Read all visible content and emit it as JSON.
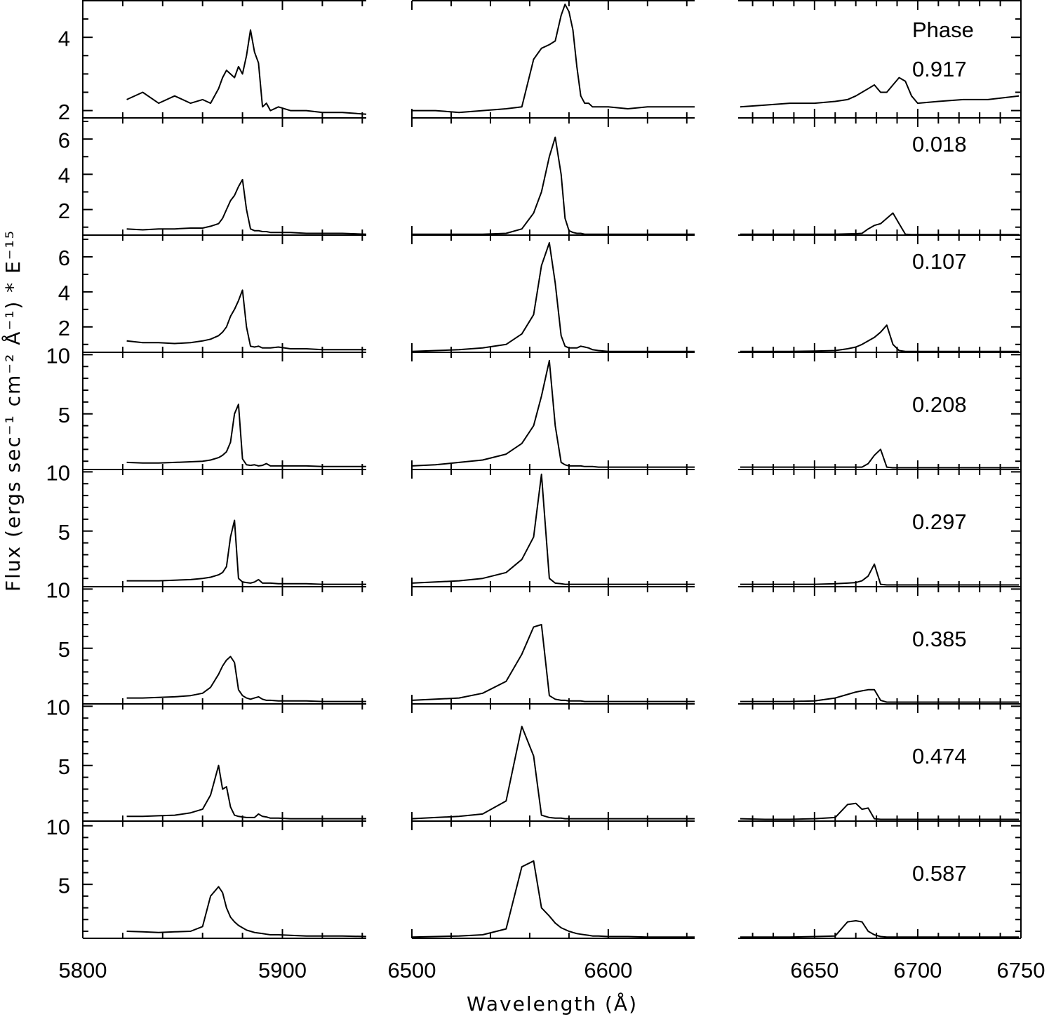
{
  "chart_data": {
    "type": "line",
    "color": "#000000",
    "ylabel": "Flux (ergs sec⁻¹ cm⁻² Å⁻¹) * E⁻¹⁵",
    "xlabel": "Wavelength (Å)",
    "legend_title": "Phase",
    "columns": [
      {
        "xlim": [
          5800,
          5942
        ],
        "xticks": [
          5800,
          5900
        ],
        "xminorticks": [
          5820,
          5840,
          5860,
          5880,
          5920,
          5940
        ],
        "x": [
          5822,
          5830,
          5838,
          5846,
          5854,
          5860,
          5864,
          5868,
          5870,
          5872,
          5874,
          5876,
          5878,
          5880,
          5882,
          5884,
          5886,
          5888,
          5890,
          5892,
          5894,
          5898,
          5904,
          5912,
          5920,
          5930,
          5942
        ]
      },
      {
        "xlim": [
          6500,
          6644
        ],
        "xticks": [
          6500,
          6600
        ],
        "xminorticks": [
          6520,
          6540,
          6560,
          6580,
          6620,
          6640
        ],
        "x": [
          6500,
          6512,
          6524,
          6536,
          6548,
          6556,
          6562,
          6566,
          6570,
          6573,
          6576,
          6578,
          6580,
          6582,
          6584,
          6586,
          6588,
          6590,
          6592,
          6595,
          6600,
          6610,
          6620,
          6632,
          6644
        ]
      },
      {
        "xlim": [
          6613,
          6750
        ],
        "xticks": [
          6650,
          6700,
          6750
        ],
        "xminorticks": [
          6620,
          6630,
          6640,
          6660,
          6670,
          6680,
          6690,
          6710,
          6720,
          6730,
          6740
        ],
        "x": [
          6614,
          6626,
          6638,
          6650,
          6660,
          6666,
          6670,
          6673,
          6676,
          6679,
          6682,
          6685,
          6688,
          6691,
          6694,
          6697,
          6700,
          6710,
          6722,
          6734,
          6749
        ]
      }
    ],
    "rows": [
      {
        "phase": "0.917",
        "ylim": [
          1.8,
          5.0
        ],
        "yticks": [
          2,
          4
        ],
        "yminorticks": [
          2.5,
          3,
          3.5,
          4.5
        ],
        "series": [
          [
            2.3,
            2.5,
            2.2,
            2.4,
            2.2,
            2.3,
            2.2,
            2.6,
            2.9,
            3.1,
            3.0,
            2.9,
            3.2,
            3.0,
            3.5,
            4.2,
            3.6,
            3.3,
            2.1,
            2.2,
            2.0,
            2.1,
            2.0,
            2.0,
            1.95,
            1.95,
            1.9
          ],
          [
            2.0,
            2.0,
            1.95,
            2.0,
            2.05,
            2.1,
            3.4,
            3.7,
            3.8,
            3.9,
            4.6,
            4.9,
            4.7,
            4.2,
            3.2,
            2.4,
            2.2,
            2.2,
            2.1,
            2.1,
            2.1,
            2.05,
            2.1,
            2.1,
            2.1
          ],
          [
            2.1,
            2.15,
            2.2,
            2.2,
            2.25,
            2.3,
            2.4,
            2.5,
            2.6,
            2.7,
            2.5,
            2.5,
            2.7,
            2.9,
            2.8,
            2.4,
            2.2,
            2.25,
            2.3,
            2.3,
            2.4
          ]
        ]
      },
      {
        "phase": "0.018",
        "ylim": [
          0.55,
          7.2
        ],
        "yticks": [
          2,
          4,
          6
        ],
        "yminorticks": [
          1,
          3,
          5,
          7
        ],
        "series": [
          [
            0.9,
            0.85,
            0.9,
            0.9,
            0.95,
            0.95,
            1.05,
            1.2,
            1.5,
            2.0,
            2.5,
            2.8,
            3.3,
            3.7,
            2.0,
            0.9,
            0.8,
            0.8,
            0.75,
            0.75,
            0.7,
            0.7,
            0.7,
            0.65,
            0.65,
            0.65,
            0.6
          ],
          [
            0.6,
            0.6,
            0.6,
            0.6,
            0.65,
            0.9,
            1.8,
            3.0,
            5.0,
            6.1,
            4.0,
            1.5,
            0.8,
            0.7,
            0.65,
            0.65,
            0.6,
            0.6,
            0.6,
            0.6,
            0.6,
            0.6,
            0.6,
            0.6,
            0.6
          ],
          [
            0.6,
            0.6,
            0.6,
            0.6,
            0.6,
            0.62,
            0.63,
            0.65,
            0.9,
            1.1,
            1.2,
            1.5,
            1.8,
            1.2,
            0.6,
            0.58,
            0.58,
            0.58,
            0.58,
            0.58,
            0.58
          ]
        ]
      },
      {
        "phase": "0.107",
        "ylim": [
          0.55,
          7.24
        ],
        "yticks": [
          2,
          4,
          6
        ],
        "yminorticks": [
          1,
          3,
          5,
          7
        ],
        "series": [
          [
            1.2,
            1.1,
            1.1,
            1.05,
            1.1,
            1.2,
            1.3,
            1.5,
            1.7,
            2.0,
            2.6,
            3.0,
            3.5,
            4.1,
            2.0,
            0.9,
            0.85,
            0.9,
            0.8,
            0.8,
            0.8,
            0.85,
            0.75,
            0.75,
            0.7,
            0.7,
            0.7
          ],
          [
            0.6,
            0.65,
            0.7,
            0.8,
            1.0,
            1.6,
            2.7,
            5.5,
            6.8,
            4.5,
            1.5,
            0.9,
            0.8,
            0.8,
            0.8,
            0.9,
            0.85,
            0.8,
            0.7,
            0.65,
            0.6,
            0.6,
            0.6,
            0.6,
            0.6
          ],
          [
            0.6,
            0.6,
            0.6,
            0.62,
            0.65,
            0.75,
            0.85,
            1.0,
            1.2,
            1.4,
            1.7,
            2.1,
            1.0,
            0.65,
            0.6,
            0.6,
            0.6,
            0.6,
            0.6,
            0.6,
            0.6
          ]
        ]
      },
      {
        "phase": "0.208",
        "ylim": [
          0.3,
          10.2
        ],
        "yticks": [
          5,
          10
        ],
        "yminorticks": [
          1,
          2,
          3,
          4,
          6,
          7,
          8,
          9
        ],
        "series": [
          [
            0.9,
            0.85,
            0.85,
            0.9,
            0.95,
            1.0,
            1.1,
            1.3,
            1.5,
            1.8,
            2.6,
            5.0,
            5.8,
            1.2,
            0.7,
            0.65,
            0.7,
            0.6,
            0.65,
            0.8,
            0.6,
            0.6,
            0.6,
            0.6,
            0.55,
            0.55,
            0.55
          ],
          [
            0.6,
            0.7,
            0.9,
            1.1,
            1.6,
            2.5,
            4.0,
            6.5,
            9.5,
            4.0,
            0.9,
            0.7,
            0.6,
            0.6,
            0.6,
            0.6,
            0.55,
            0.55,
            0.55,
            0.5,
            0.5,
            0.5,
            0.5,
            0.5,
            0.5
          ],
          [
            0.5,
            0.5,
            0.5,
            0.5,
            0.5,
            0.5,
            0.5,
            0.5,
            0.8,
            1.5,
            2.0,
            0.5,
            0.45,
            0.45,
            0.45,
            0.45,
            0.45,
            0.45,
            0.45,
            0.45,
            0.45
          ]
        ]
      },
      {
        "phase": "0.297",
        "ylim": [
          0.3,
          10.2
        ],
        "yticks": [
          5,
          10
        ],
        "yminorticks": [
          1,
          2,
          3,
          4,
          6,
          7,
          8,
          9
        ],
        "series": [
          [
            0.8,
            0.8,
            0.8,
            0.85,
            0.9,
            1.0,
            1.1,
            1.3,
            1.5,
            2.0,
            4.5,
            5.9,
            1.0,
            0.7,
            0.65,
            0.6,
            0.7,
            0.9,
            0.6,
            0.6,
            0.6,
            0.55,
            0.55,
            0.55,
            0.5,
            0.5,
            0.5
          ],
          [
            0.6,
            0.7,
            0.8,
            1.0,
            1.5,
            2.6,
            4.5,
            9.8,
            1.0,
            0.6,
            0.55,
            0.5,
            0.5,
            0.5,
            0.5,
            0.5,
            0.5,
            0.5,
            0.5,
            0.5,
            0.5,
            0.5,
            0.5,
            0.5,
            0.5
          ],
          [
            0.5,
            0.5,
            0.5,
            0.5,
            0.55,
            0.6,
            0.65,
            0.8,
            1.2,
            2.2,
            0.5,
            0.45,
            0.45,
            0.45,
            0.45,
            0.45,
            0.45,
            0.45,
            0.45,
            0.45,
            0.45
          ]
        ]
      },
      {
        "phase": "0.385",
        "ylim": [
          0.3,
          10.2
        ],
        "yticks": [
          5,
          10
        ],
        "yminorticks": [
          1,
          2,
          3,
          4,
          6,
          7,
          8,
          9
        ],
        "series": [
          [
            0.8,
            0.8,
            0.85,
            0.9,
            1.0,
            1.2,
            1.7,
            2.8,
            3.5,
            4.0,
            4.3,
            3.8,
            1.5,
            1.0,
            0.8,
            0.7,
            0.8,
            0.9,
            0.7,
            0.6,
            0.6,
            0.55,
            0.55,
            0.55,
            0.5,
            0.5,
            0.5
          ],
          [
            0.6,
            0.7,
            0.8,
            1.2,
            2.2,
            4.5,
            6.8,
            7.0,
            1.0,
            0.7,
            0.6,
            0.6,
            0.55,
            0.55,
            0.55,
            0.55,
            0.5,
            0.5,
            0.5,
            0.5,
            0.5,
            0.5,
            0.5,
            0.5,
            0.5
          ],
          [
            0.5,
            0.5,
            0.5,
            0.55,
            0.8,
            1.1,
            1.3,
            1.4,
            1.5,
            1.5,
            0.6,
            0.45,
            0.45,
            0.45,
            0.45,
            0.45,
            0.45,
            0.45,
            0.45,
            0.45,
            0.45
          ]
        ]
      },
      {
        "phase": "0.474",
        "ylim": [
          0.3,
          10.2
        ],
        "yticks": [
          5,
          10
        ],
        "yminorticks": [
          1,
          2,
          3,
          4,
          6,
          7,
          8,
          9
        ],
        "series": [
          [
            0.7,
            0.7,
            0.75,
            0.8,
            1.0,
            1.3,
            2.5,
            5.0,
            3.0,
            3.2,
            1.5,
            0.8,
            0.7,
            0.65,
            0.6,
            0.6,
            0.6,
            0.9,
            0.7,
            0.65,
            0.55,
            0.55,
            0.5,
            0.5,
            0.5,
            0.5,
            0.5
          ],
          [
            0.5,
            0.6,
            0.7,
            0.9,
            2.0,
            8.3,
            5.8,
            0.8,
            0.6,
            0.55,
            0.55,
            0.5,
            0.5,
            0.5,
            0.5,
            0.5,
            0.5,
            0.5,
            0.5,
            0.5,
            0.5,
            0.5,
            0.5,
            0.5,
            0.5
          ],
          [
            0.5,
            0.45,
            0.45,
            0.5,
            0.6,
            1.7,
            1.8,
            1.3,
            1.4,
            0.5,
            0.45,
            0.45,
            0.45,
            0.45,
            0.45,
            0.45,
            0.45,
            0.45,
            0.45,
            0.45,
            0.45
          ]
        ]
      },
      {
        "phase": "0.587",
        "ylim": [
          0.4,
          10.4
        ],
        "yticks": [
          5,
          10
        ],
        "yminorticks": [
          1,
          2,
          3,
          4,
          6,
          7,
          8,
          9
        ],
        "series": [
          [
            1.0,
            0.95,
            0.9,
            0.95,
            1.0,
            1.4,
            4.0,
            4.8,
            4.3,
            3.0,
            2.2,
            1.8,
            1.5,
            1.3,
            1.1,
            1.0,
            0.9,
            0.85,
            0.8,
            0.75,
            0.7,
            0.7,
            0.65,
            0.6,
            0.6,
            0.6,
            0.55
          ],
          [
            0.5,
            0.55,
            0.6,
            0.7,
            1.2,
            6.5,
            7.0,
            3.0,
            2.3,
            1.7,
            1.3,
            1.15,
            1.0,
            0.9,
            0.8,
            0.75,
            0.7,
            0.65,
            0.6,
            0.6,
            0.55,
            0.55,
            0.5,
            0.5,
            0.5
          ],
          [
            0.5,
            0.5,
            0.5,
            0.55,
            0.6,
            1.8,
            1.9,
            1.8,
            1.0,
            0.7,
            0.55,
            0.5,
            0.5,
            0.5,
            0.5,
            0.5,
            0.5,
            0.5,
            0.5,
            0.5,
            0.5
          ]
        ]
      }
    ]
  }
}
